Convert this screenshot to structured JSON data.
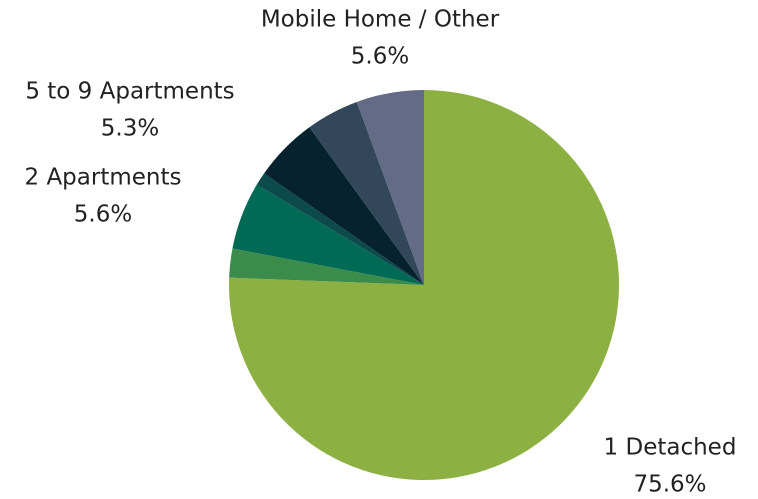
{
  "chart_data": {
    "type": "pie",
    "categories": [
      "1 Detached",
      null,
      "2 Apartments",
      null,
      "5 to 9 Apartments",
      null,
      "Mobile Home / Other"
    ],
    "values": [
      75.6,
      2.4,
      5.6,
      1.1,
      5.3,
      4.4,
      5.6
    ],
    "value_labels": [
      "75.6%",
      null,
      "5.6%",
      null,
      "5.3%",
      null,
      "5.6%"
    ],
    "colors": [
      "#8db043",
      "#3b8c4b",
      "#006a55",
      "#0c4a4c",
      "#05222e",
      "#33475a",
      "#636b86"
    ]
  }
}
